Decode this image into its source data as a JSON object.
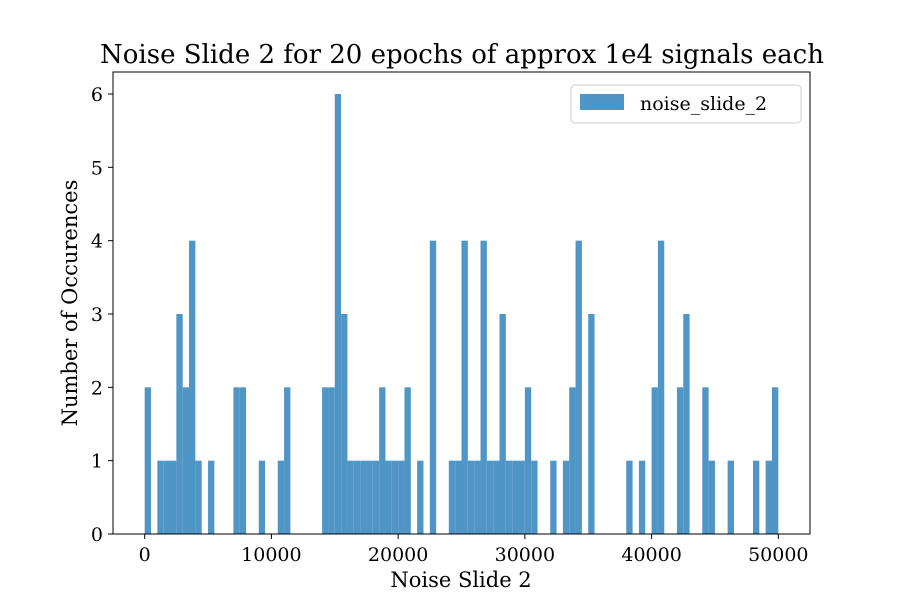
{
  "chart_data": {
    "type": "bar",
    "title": "Noise Slide 2 for 20 epochs of approx 1e4 signals each",
    "xlabel": "Noise Slide 2",
    "ylabel": "Number of Occurences",
    "xlim": [
      -2500,
      52500
    ],
    "ylim": [
      0,
      6.3
    ],
    "bin_width": 500,
    "xticks": [
      0,
      10000,
      20000,
      30000,
      40000,
      50000
    ],
    "xtick_labels": [
      "0",
      "10000",
      "20000",
      "30000",
      "40000",
      "50000"
    ],
    "yticks": [
      0,
      1,
      2,
      3,
      4,
      5,
      6
    ],
    "ytick_labels": [
      "0",
      "1",
      "2",
      "3",
      "4",
      "5",
      "6"
    ],
    "legend_position": "top-right",
    "color": "#4f95c6",
    "series": [
      {
        "name": "noise_slide_2",
        "bins": [
          [
            0,
            2
          ],
          [
            1000,
            1
          ],
          [
            1500,
            1
          ],
          [
            2000,
            1
          ],
          [
            2500,
            3
          ],
          [
            3000,
            2
          ],
          [
            3500,
            4
          ],
          [
            4000,
            1
          ],
          [
            5000,
            1
          ],
          [
            7000,
            2
          ],
          [
            7500,
            2
          ],
          [
            9000,
            1
          ],
          [
            10500,
            1
          ],
          [
            11000,
            2
          ],
          [
            14000,
            2
          ],
          [
            14500,
            2
          ],
          [
            15000,
            6
          ],
          [
            15500,
            3
          ],
          [
            16000,
            1
          ],
          [
            16500,
            1
          ],
          [
            17000,
            1
          ],
          [
            17500,
            1
          ],
          [
            18000,
            1
          ],
          [
            18500,
            2
          ],
          [
            19000,
            1
          ],
          [
            19500,
            1
          ],
          [
            20000,
            1
          ],
          [
            20500,
            2
          ],
          [
            21500,
            1
          ],
          [
            22500,
            4
          ],
          [
            24000,
            1
          ],
          [
            24500,
            1
          ],
          [
            25000,
            4
          ],
          [
            25500,
            1
          ],
          [
            26000,
            1
          ],
          [
            26500,
            4
          ],
          [
            27000,
            1
          ],
          [
            27500,
            1
          ],
          [
            28000,
            3
          ],
          [
            28500,
            1
          ],
          [
            29000,
            1
          ],
          [
            29500,
            1
          ],
          [
            30000,
            2
          ],
          [
            30500,
            1
          ],
          [
            32000,
            1
          ],
          [
            33000,
            1
          ],
          [
            33500,
            2
          ],
          [
            34000,
            4
          ],
          [
            35000,
            3
          ],
          [
            38000,
            1
          ],
          [
            39000,
            1
          ],
          [
            40000,
            2
          ],
          [
            40500,
            4
          ],
          [
            42000,
            2
          ],
          [
            42500,
            3
          ],
          [
            44000,
            2
          ],
          [
            44500,
            1
          ],
          [
            46000,
            1
          ],
          [
            48000,
            1
          ],
          [
            49000,
            1
          ],
          [
            49500,
            2
          ]
        ]
      }
    ]
  }
}
